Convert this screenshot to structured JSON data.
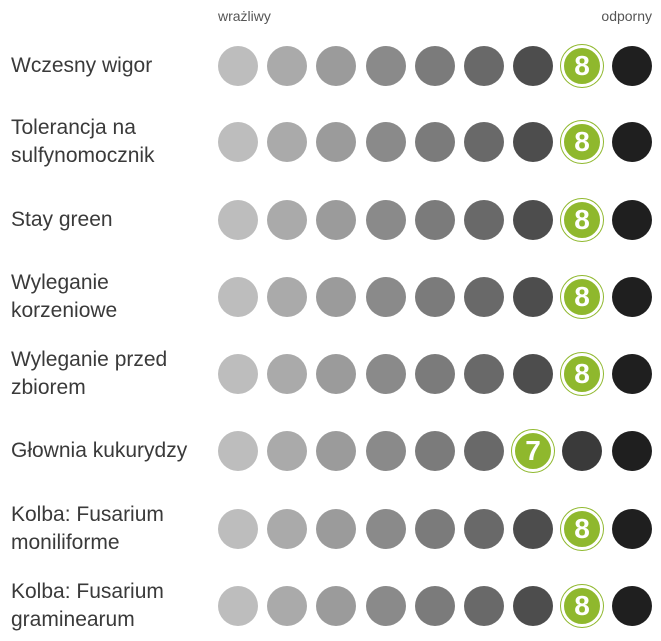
{
  "scale": {
    "min_label": "wrażliwy",
    "max_label": "odporny",
    "steps": 9
  },
  "colors": {
    "steps": [
      "#bdbdbd",
      "#aaaaaa",
      "#9b9b9b",
      "#8a8a8a",
      "#7b7b7b",
      "#696969",
      "#4d4d4d",
      "#3a3a3a",
      "#1f1f1f"
    ],
    "highlight": "#8fb82d"
  },
  "chart_data": {
    "type": "table",
    "scale_min_label": "wrażliwy",
    "scale_max_label": "odporny",
    "rows": [
      {
        "label": "Wczesny wigor",
        "value": 8
      },
      {
        "label": "Tolerancja na sulfynomocznik",
        "value": 8
      },
      {
        "label": "Stay green",
        "value": 8
      },
      {
        "label": "Wyleganie korzeniowe",
        "value": 8
      },
      {
        "label": "Wyleganie przed zbiorem",
        "value": 8
      },
      {
        "label": "Głownia kukurydzy",
        "value": 7
      },
      {
        "label": "Kolba: Fusarium moniliforme",
        "value": 8
      },
      {
        "label": "Kolba: Fusarium graminearum",
        "value": 8
      }
    ]
  }
}
